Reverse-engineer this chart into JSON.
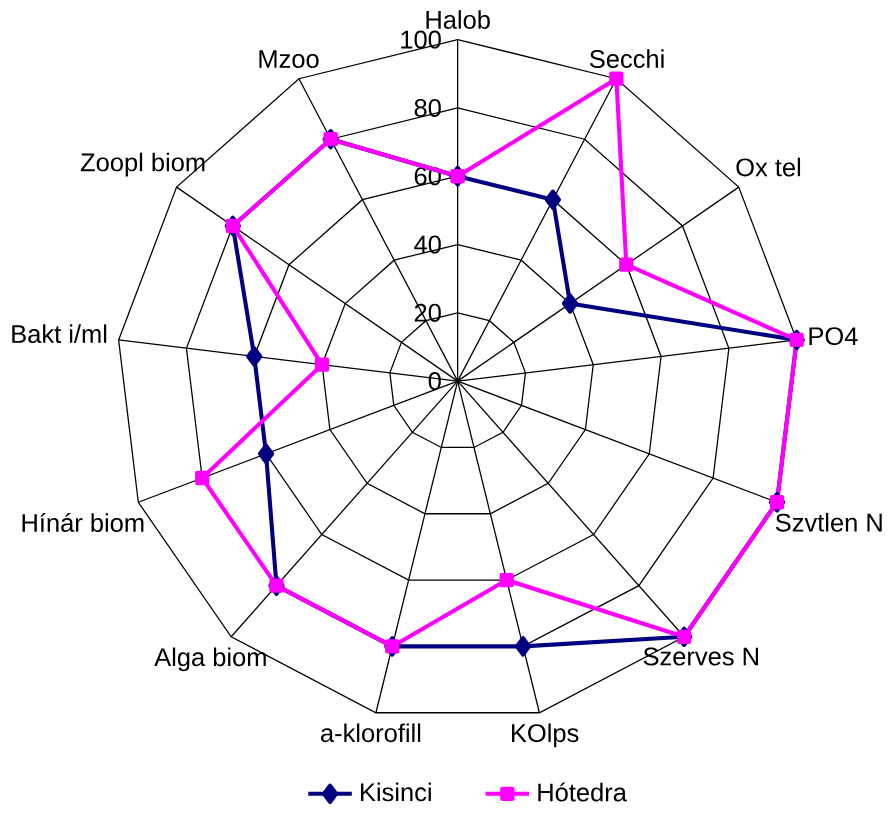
{
  "chart_data": {
    "type": "radar",
    "categories": [
      "Halob",
      "Secchi",
      "Ox tel",
      "PO4",
      "Szvtlen N",
      "Szerves N",
      "KOlps",
      "a-klorofill",
      "Alga biom",
      "Hínár biom",
      "Bakt i/ml",
      "Zoopl biom",
      "Mzoo"
    ],
    "series": [
      {
        "name": "Kisinci",
        "color": "#000080",
        "marker": "diamond",
        "values": [
          60,
          60,
          40,
          100,
          100,
          100,
          80,
          80,
          80,
          60,
          60,
          80,
          80
        ]
      },
      {
        "name": "Hótedra",
        "color": "#ff00ff",
        "marker": "square",
        "values": [
          60,
          100,
          60,
          100,
          100,
          100,
          60,
          80,
          80,
          80,
          40,
          80,
          80
        ]
      }
    ],
    "ylim": [
      0,
      100
    ],
    "yticks": [
      0,
      20,
      40,
      60,
      80,
      100
    ],
    "grid": true,
    "legend": "bottom"
  }
}
